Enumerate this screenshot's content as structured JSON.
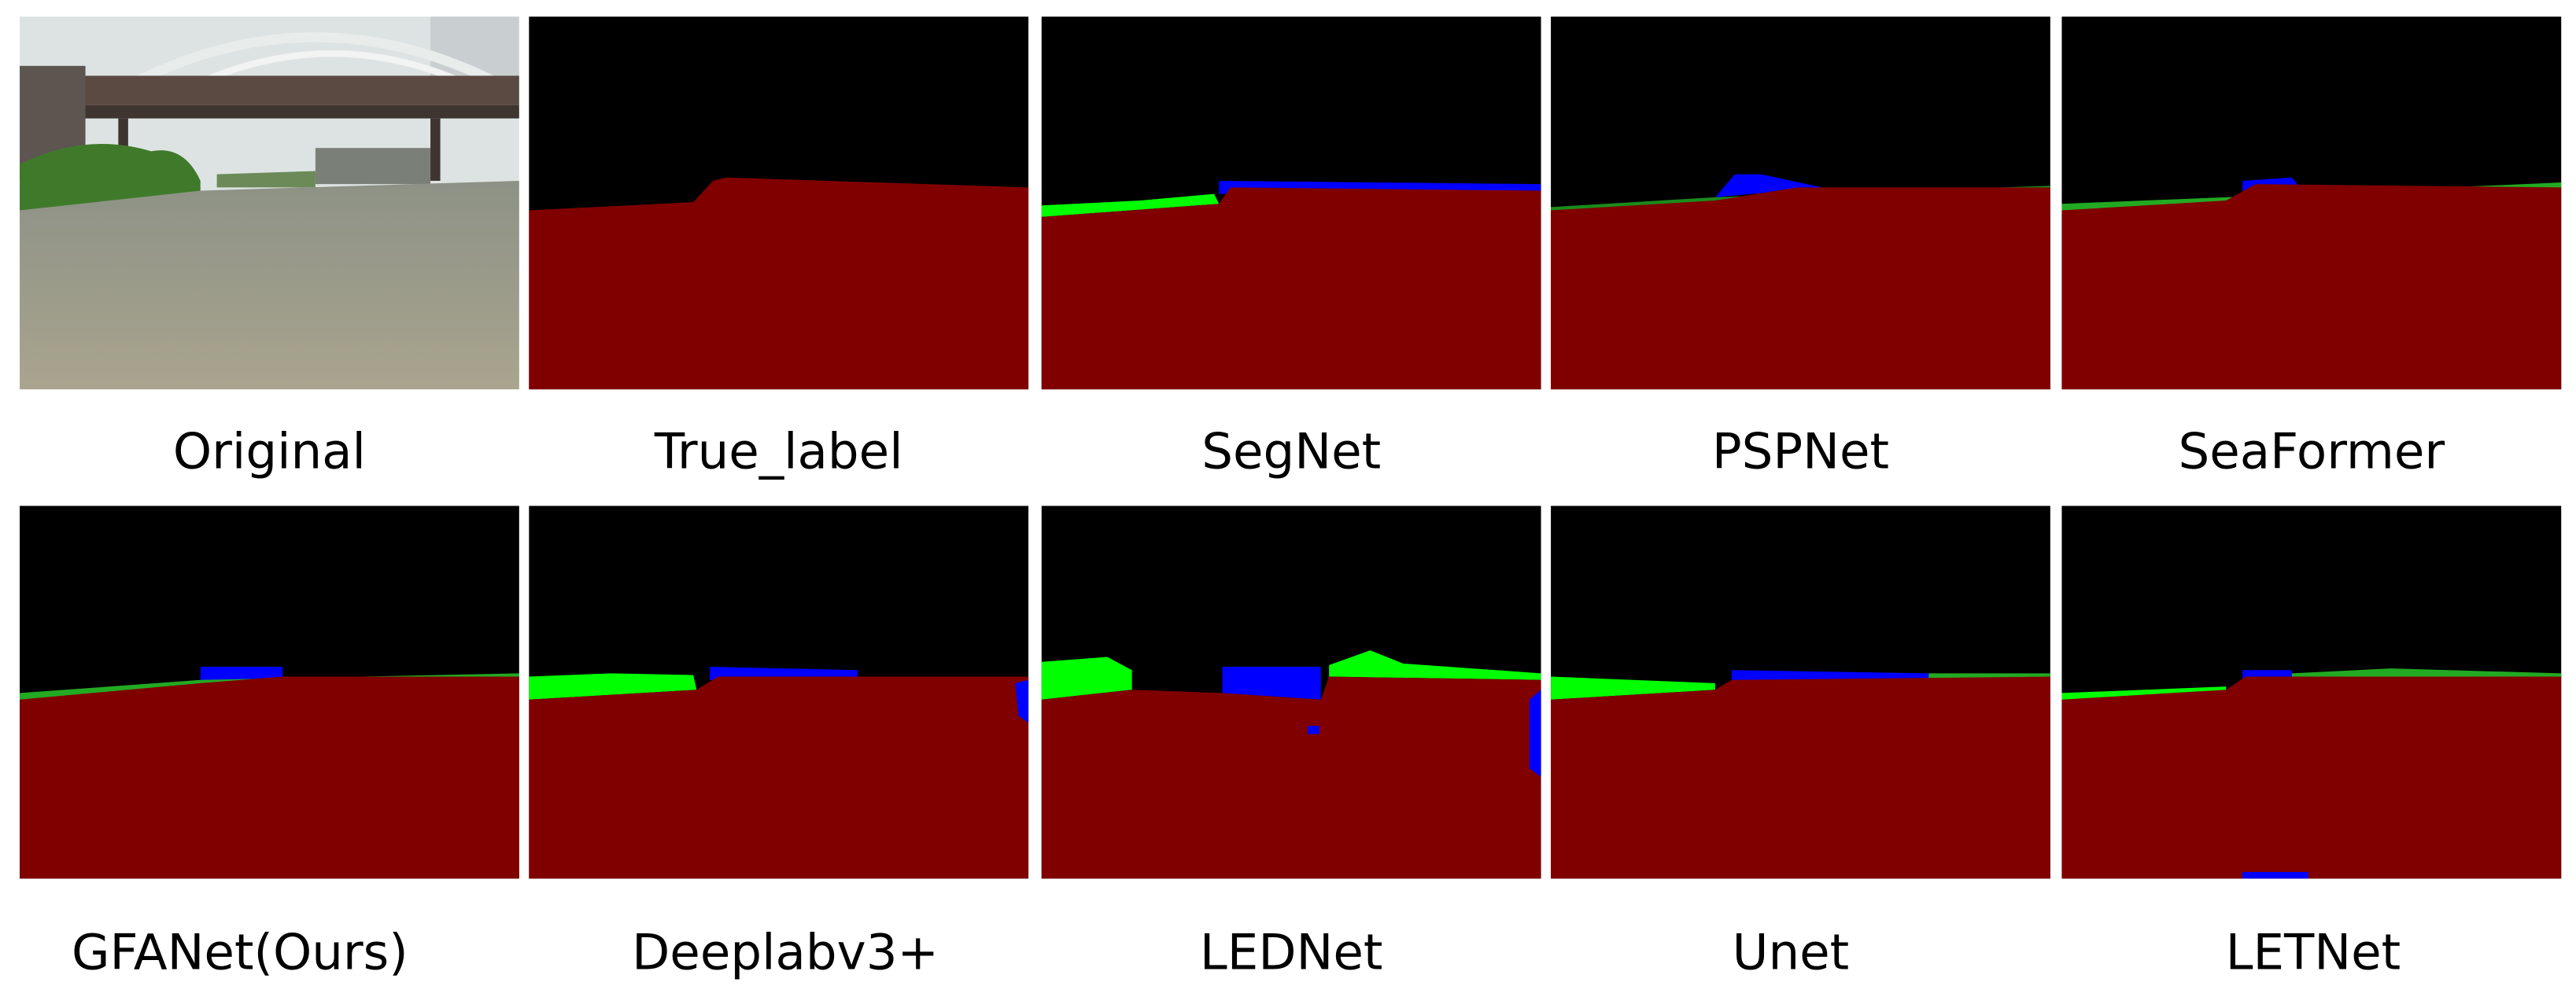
{
  "panels": [
    {
      "label": "Original"
    },
    {
      "label": "True_label"
    },
    {
      "label": "SegNet"
    },
    {
      "label": "PSPNet"
    },
    {
      "label": "SeaFormer"
    },
    {
      "label": "GFANet(Ours)"
    },
    {
      "label": "Deeplabv3+"
    },
    {
      "label": "LEDNet"
    },
    {
      "label": "Unet"
    },
    {
      "label": "LETNet"
    }
  ]
}
